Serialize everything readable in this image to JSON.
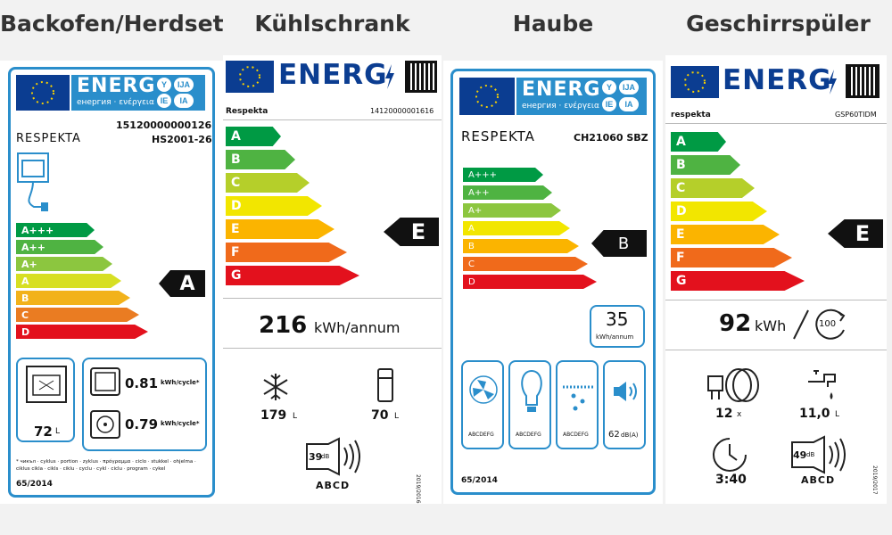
{
  "titles": {
    "oven": "Backofen/Herdset",
    "fridge": "Kühlschrank",
    "hood": "Haube",
    "dishwasher": "Geschirrspüler"
  },
  "colors": {
    "dark_green": "#009a44",
    "green": "#4fb342",
    "light_green": "#b5cf2a",
    "yellow": "#f2e600",
    "amber": "#fbb400",
    "orange": "#f06a1b",
    "red": "#e3111d",
    "eu_blue": "#0b3d91",
    "frame_blue": "#2a8ecb"
  },
  "common": {
    "energ": "ENERG",
    "energ_sub": "енергия · ενέργεια",
    "lang_badges": [
      "Y",
      "IJA",
      "IE",
      "IA"
    ]
  },
  "oven": {
    "code": "15120000000126",
    "brand": "RESPEKTA",
    "model": "HS2001-26",
    "classes": [
      "A+++",
      "A++",
      "A+",
      "A",
      "B",
      "C",
      "D"
    ],
    "rating": "A",
    "volume": "72",
    "volume_unit": "L",
    "consumption_1": "0.81",
    "consumption_2": "0.79",
    "consumption_unit": "kWh/cycle*",
    "footnote": "* чикъл · cyklus · portion · zyklus · πρόγραμμα · ciclo · stukkel · ohjelma · ciklus cikla · cikls · ciklu · cyclu · cykl · ciclu · program · cykel",
    "regulation": "65/2014"
  },
  "fridge": {
    "brand": "Respekta",
    "code": "14120000001616",
    "classes": [
      "A",
      "B",
      "C",
      "D",
      "E",
      "F",
      "G"
    ],
    "rating": "E",
    "energy_value": "216",
    "energy_unit": "kWh/annum",
    "freezer_volume": "179",
    "fridge_volume": "70",
    "volume_unit": "L",
    "noise": "39",
    "noise_unit": "dB",
    "noise_classes": "ABCD",
    "side_code": "2019/2016"
  },
  "hood": {
    "brand": "RESPEKTA",
    "model": "CH21060 SBZ",
    "classes": [
      "A+++",
      "A++",
      "A+",
      "A",
      "B",
      "C",
      "D"
    ],
    "rating": "B",
    "energy_value": "35",
    "energy_unit": "kWh/annum",
    "fan_class": "ABCDEFG",
    "light_class": "ABCDEFG",
    "grease_class": "ABCDEFG",
    "noise": "62",
    "noise_unit": "dB(A)",
    "regulation": "65/2014"
  },
  "dishwasher": {
    "brand": "respekta",
    "model": "GSP60TIDM",
    "classes": [
      "A",
      "B",
      "C",
      "D",
      "E",
      "F",
      "G"
    ],
    "rating": "E",
    "energy_value": "92",
    "energy_unit": "kWh",
    "cycles": "100",
    "place_settings": "12",
    "place_unit": "x",
    "water": "11,0",
    "water_unit": "L",
    "duration": "3:40",
    "noise": "49",
    "noise_unit": "dB",
    "noise_classes": "ABCD",
    "side_code": "2019/2017"
  }
}
